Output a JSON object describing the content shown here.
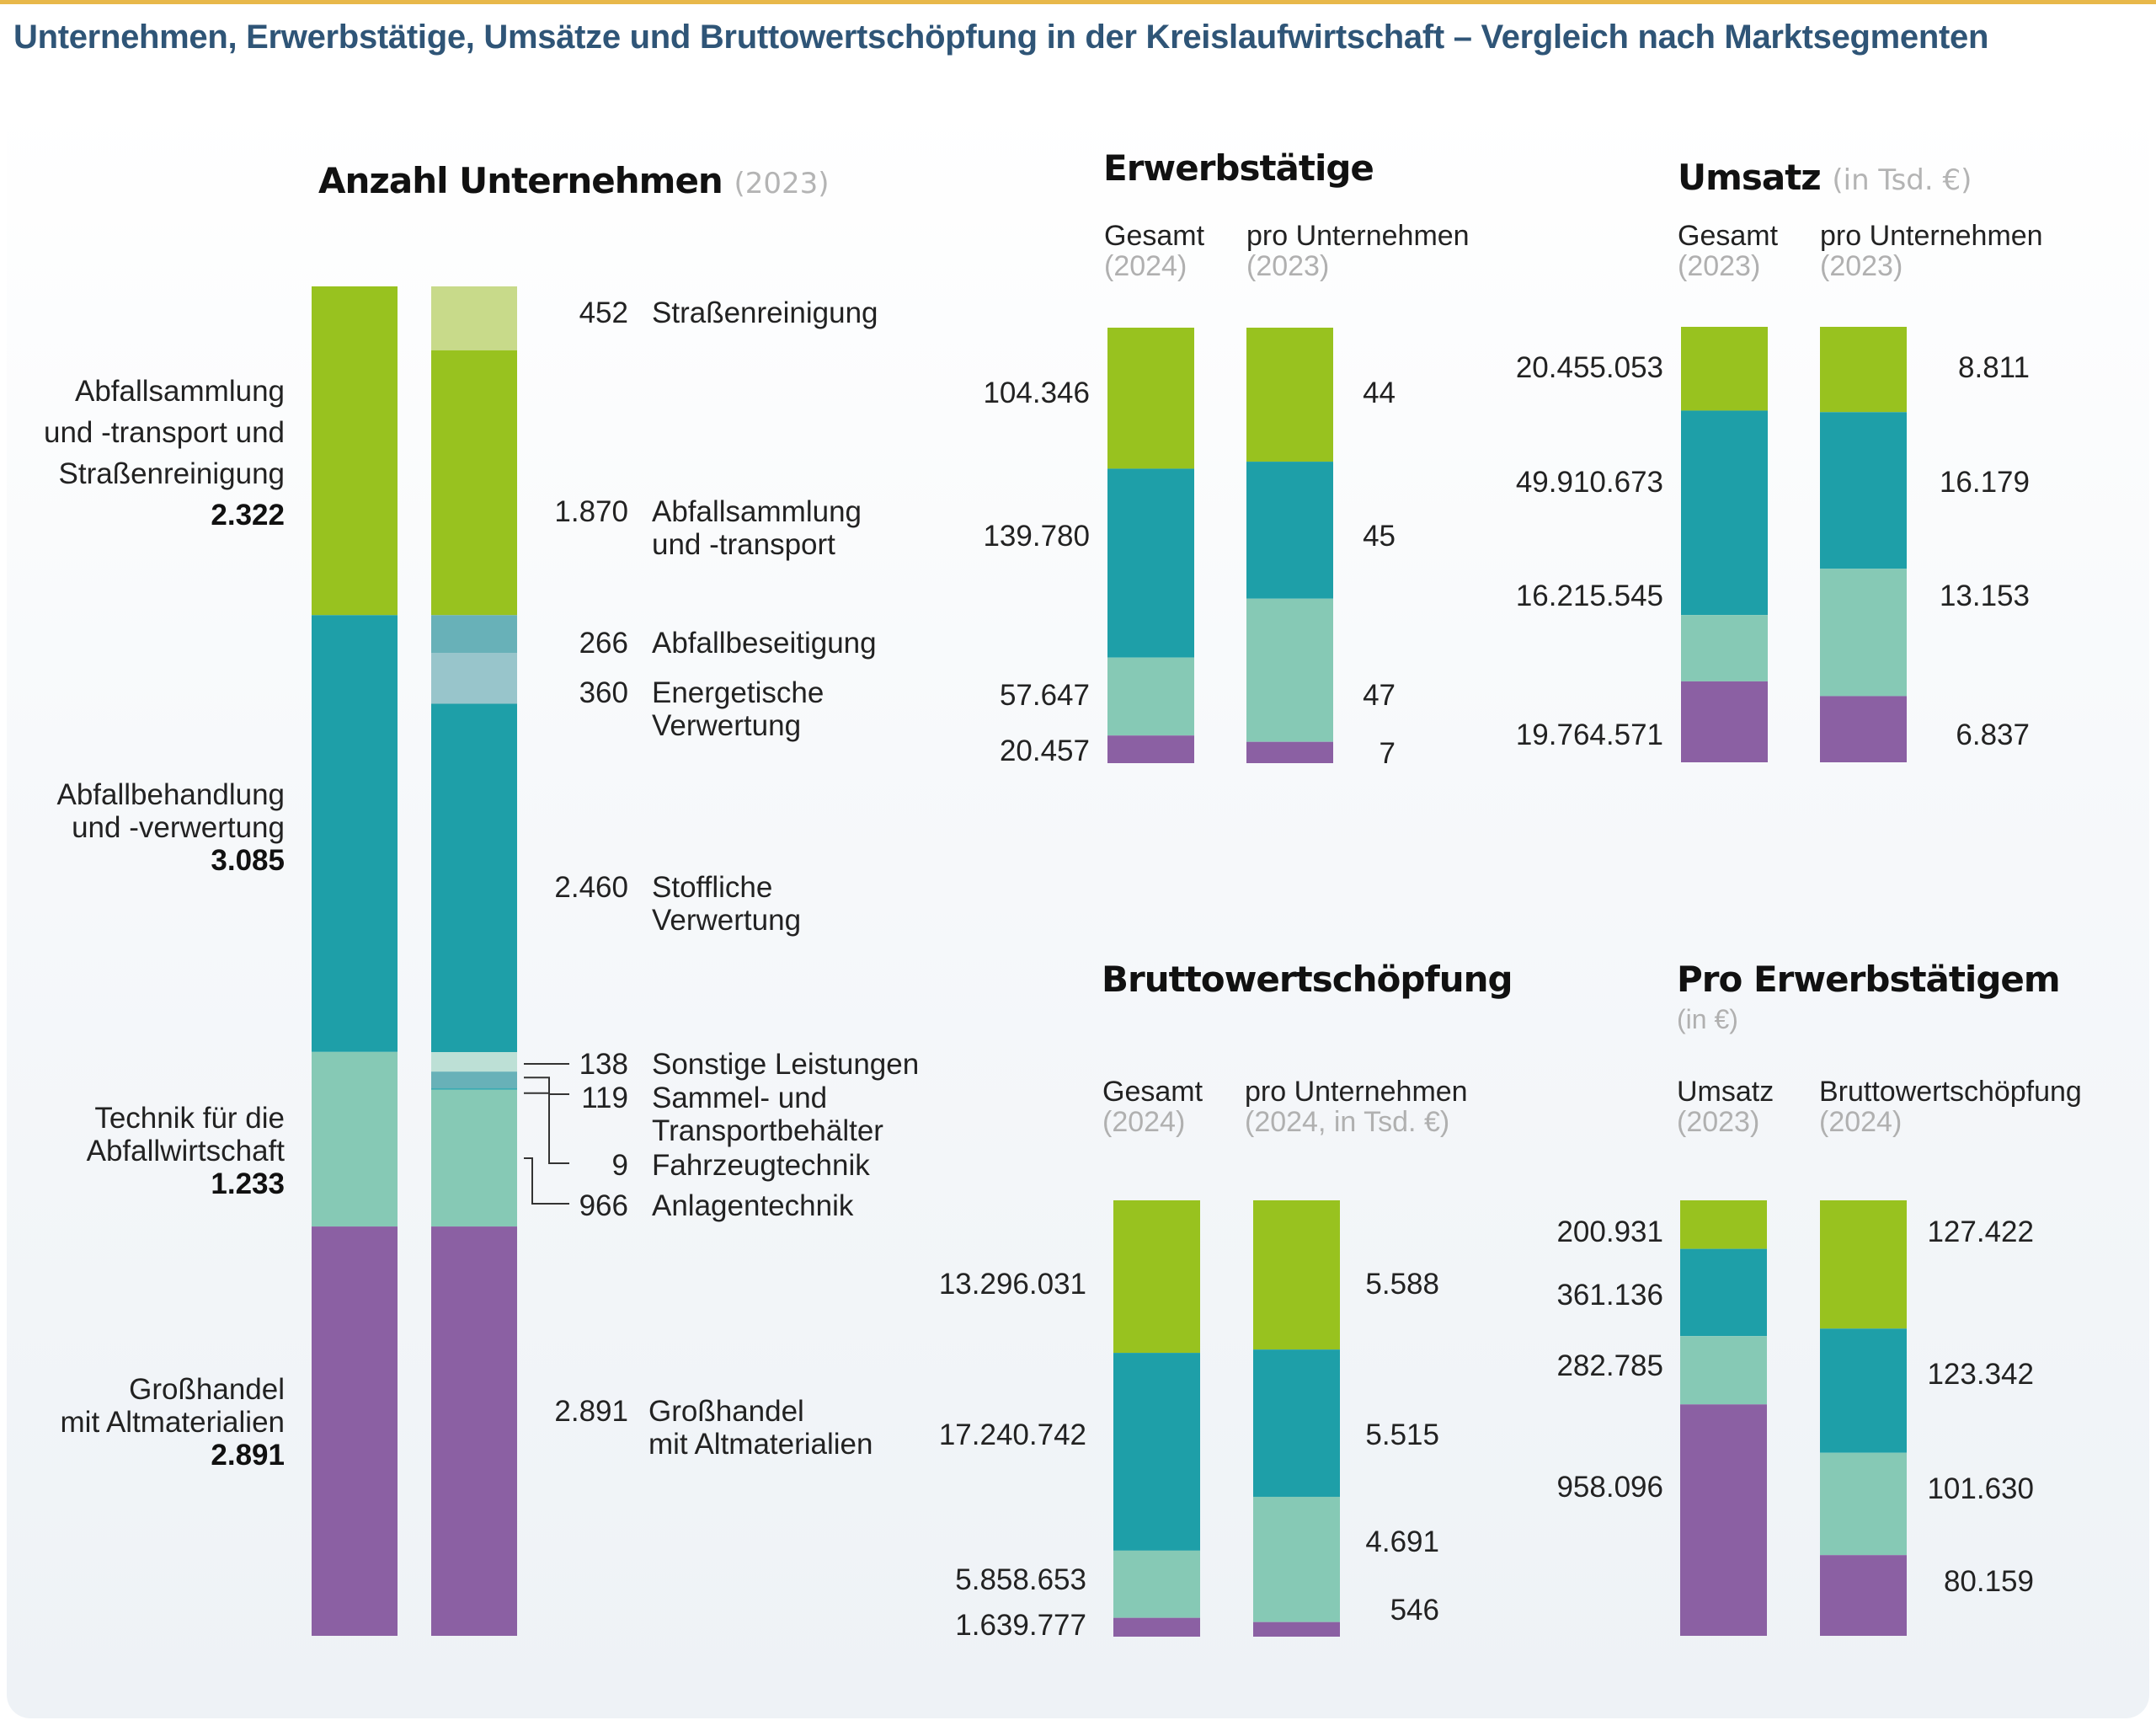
{
  "title": "Unternehmen, Erwerbstätige, Umsätze und Bruttowertschöpfung in der Kreislaufwirtschaft – Vergleich nach Marktsegmenten",
  "colors": {
    "title": "#2f5577",
    "accent_line": "#e8b84a",
    "green": "#98c21f",
    "green_light": "#c8da8a",
    "teal": "#1e9fa8",
    "teal_mid": "#68b1b8",
    "teal_light": "#98c5cb",
    "mint": "#86c9b5",
    "mint_light": "#bde0d6",
    "purple": "#8b60a3"
  },
  "segments": [
    "Abfallsammlung und -transport und Straßenreinigung",
    "Abfallbehandlung und -verwertung",
    "Technik für die Abfallwirtschaft",
    "Großhandel mit Altmaterialien"
  ],
  "chart_data": [
    {
      "id": "anzahl",
      "type": "bar",
      "stacked": true,
      "normalized": true,
      "title": "Anzahl Unternehmen",
      "subtitle": "(2023)",
      "groups": [
        {
          "lines": [
            "Abfallsammlung",
            "und -transport und",
            "Straßenreinigung"
          ],
          "total": "2.322",
          "value": 2322,
          "color": "green"
        },
        {
          "lines": [
            "Abfallbehandlung",
            "und -verwertung"
          ],
          "total": "3.085",
          "value": 3085,
          "color": "teal"
        },
        {
          "lines": [
            "Technik für die",
            "Abfallwirtschaft"
          ],
          "total": "1.233",
          "value": 1233,
          "color": "mint"
        },
        {
          "lines": [
            "Großhandel",
            "mit Altmaterialien"
          ],
          "total": "2.891",
          "value": 2891,
          "color": "purple"
        }
      ],
      "subsegments": [
        {
          "label": "Straßenreinigung",
          "display": "452",
          "value": 452,
          "color": "green_light"
        },
        {
          "label": "Abfallsammlung und -transport",
          "display": "1.870",
          "value": 1870,
          "color": "green"
        },
        {
          "label": "Abfallbeseitigung",
          "display": "266",
          "value": 266,
          "color": "teal_mid"
        },
        {
          "label": "Energetische Verwertung",
          "display": "360",
          "value": 360,
          "color": "teal_light"
        },
        {
          "label": "Stoffliche Verwertung",
          "display": "2.460",
          "value": 2460,
          "color": "teal"
        },
        {
          "label": "Sonstige Leistungen",
          "display": "138",
          "value": 138,
          "color": "mint_light"
        },
        {
          "label": "Sammel- und Transportbehälter",
          "display": "119",
          "value": 119,
          "color": "teal_mid"
        },
        {
          "label": "Fahrzeugtechnik",
          "display": "9",
          "value": 9,
          "color": "teal"
        },
        {
          "label": "Anlagentechnik",
          "display": "966",
          "value": 966,
          "color": "mint"
        },
        {
          "label": "Großhandel mit Altmaterialien",
          "display": "2.891",
          "value": 2891,
          "color": "purple"
        }
      ],
      "sub_labels": {
        "strassen": [
          "Straßenreinigung"
        ],
        "sammlung": [
          "Abfallsammlung",
          "und -transport"
        ],
        "beseitigung": [
          "Abfallbeseitigung"
        ],
        "energetisch": [
          "Energetische",
          "Verwertung"
        ],
        "stofflich": [
          "Stoffliche",
          "Verwertung"
        ],
        "sonstige": [
          "Sonstige Leistungen"
        ],
        "behaelter": [
          "Sammel- und",
          "Transportbehälter"
        ],
        "fahrzeug": [
          "Fahrzeugtechnik"
        ],
        "anlagen": [
          "Anlagentechnik"
        ],
        "grosshandel": [
          "Großhandel",
          "mit Altmaterialien"
        ]
      }
    },
    {
      "id": "erwerb",
      "type": "bar",
      "stacked": true,
      "normalized": true,
      "title": "Erwerbstätige",
      "columns": [
        {
          "label": "Gesamt",
          "year": "(2024)",
          "values": [
            104346,
            139780,
            57647,
            20457
          ],
          "display": [
            "104.346",
            "139.780",
            "57.647",
            "20.457"
          ]
        },
        {
          "label": "pro Unternehmen",
          "year": "(2023)",
          "values": [
            44,
            45,
            47,
            7
          ],
          "display": [
            "44",
            "45",
            "47",
            "7"
          ]
        }
      ]
    },
    {
      "id": "umsatz",
      "type": "bar",
      "stacked": true,
      "normalized": true,
      "title": "Umsatz",
      "subtitle": "(in Tsd. €)",
      "columns": [
        {
          "label": "Gesamt",
          "year": "(2023)",
          "values": [
            20455053,
            49910673,
            16215545,
            19764571
          ],
          "display": [
            "20.455.053",
            "49.910.673",
            "16.215.545",
            "19.764.571"
          ]
        },
        {
          "label": "pro Unternehmen",
          "year": "(2023)",
          "values": [
            8811,
            16179,
            13153,
            6837
          ],
          "display": [
            "8.811",
            "16.179",
            "13.153",
            "6.837"
          ]
        }
      ]
    },
    {
      "id": "bws",
      "type": "bar",
      "stacked": true,
      "normalized": true,
      "title": "Bruttowertschöpfung",
      "columns": [
        {
          "label": "Gesamt",
          "year": "(2024)",
          "values": [
            13296031,
            17240742,
            5858653,
            1639777
          ],
          "display": [
            "13.296.031",
            "17.240.742",
            "5.858.653",
            "1.639.777"
          ]
        },
        {
          "label": "pro Unternehmen",
          "year": "(2024, in Tsd. €)",
          "values": [
            5588,
            5515,
            4691,
            546
          ],
          "display": [
            "5.588",
            "5.515",
            "4.691",
            "546"
          ]
        }
      ]
    },
    {
      "id": "pro_erwerb",
      "type": "bar",
      "stacked": true,
      "normalized": true,
      "title": "Pro Erwerbstätigem",
      "subtitle": "(in €)",
      "columns": [
        {
          "label": "Umsatz",
          "year": "(2023)",
          "values": [
            200931,
            361136,
            282785,
            958096
          ],
          "display": [
            "200.931",
            "361.136",
            "282.785",
            "958.096"
          ]
        },
        {
          "label": "Bruttowertschöpfung",
          "year": "(2024)",
          "values": [
            127422,
            123342,
            101630,
            80159
          ],
          "display": [
            "127.422",
            "123.342",
            "101.630",
            "80.159"
          ]
        }
      ]
    }
  ]
}
